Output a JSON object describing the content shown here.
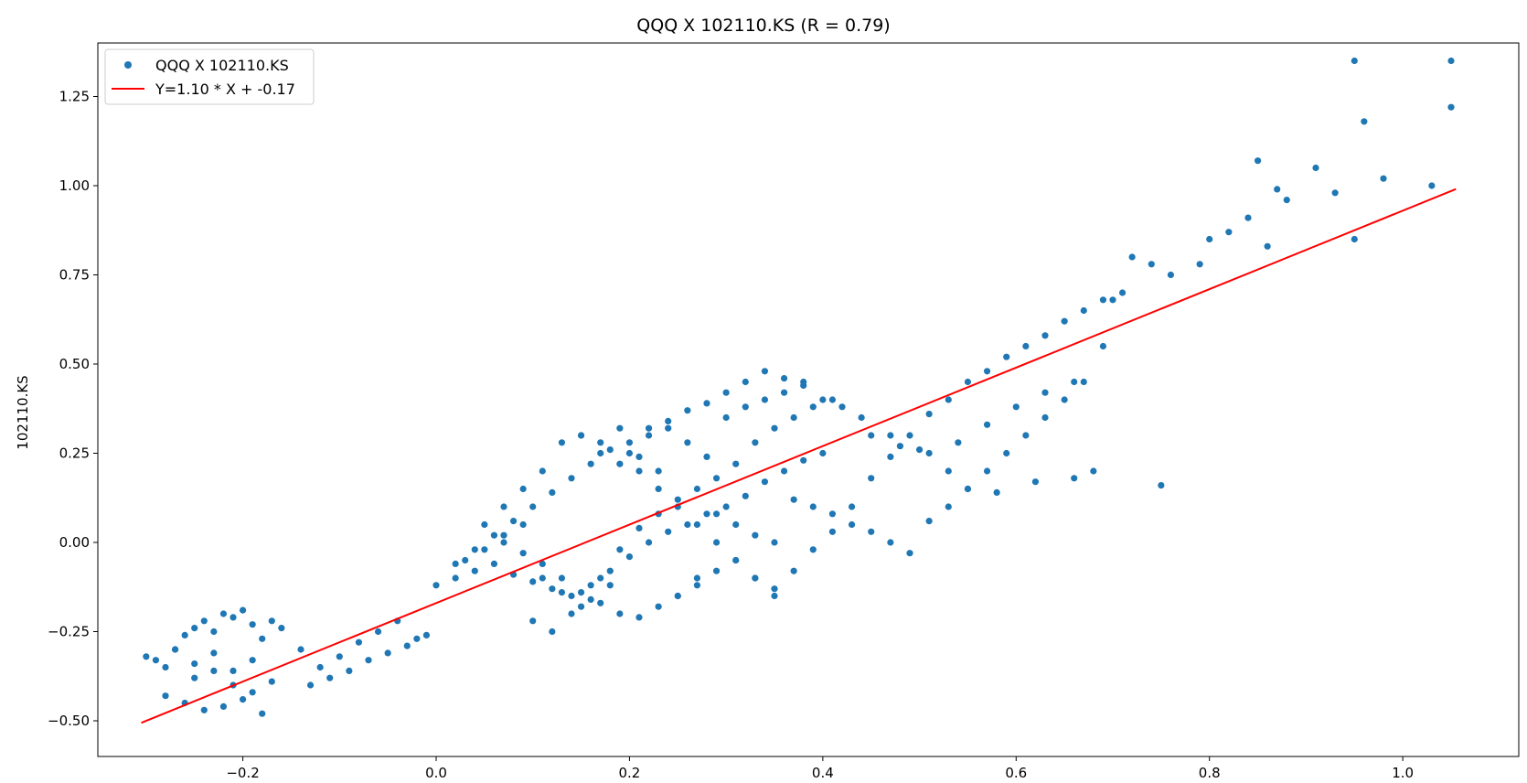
{
  "chart_data": {
    "type": "scatter",
    "title": "QQQ X 102110.KS (R = 0.79)",
    "xlabel": "",
    "ylabel": "102110.KS",
    "xlim": [
      -0.35,
      1.12
    ],
    "ylim": [
      -0.6,
      1.4
    ],
    "xticks": [
      "−0.2",
      "0.0",
      "0.2",
      "0.4",
      "0.6",
      "0.8",
      "1.0"
    ],
    "yticks": [
      "−0.50",
      "−0.25",
      "0.00",
      "0.25",
      "0.50",
      "0.75",
      "1.00",
      "1.25"
    ],
    "xtick_values": [
      -0.2,
      0.0,
      0.2,
      0.4,
      0.6,
      0.8,
      1.0
    ],
    "ytick_values": [
      -0.5,
      -0.25,
      0.0,
      0.25,
      0.5,
      0.75,
      1.0,
      1.25
    ],
    "legend": {
      "position": "upper-left",
      "entries": [
        "QQQ X 102110.KS",
        "Y=1.10 * X + -0.17"
      ]
    },
    "colors": {
      "points": "#1f77b4",
      "fit_line": "#ff0000"
    },
    "series": [
      {
        "name": "QQQ X 102110.KS",
        "type": "scatter",
        "x": [
          -0.3,
          -0.29,
          -0.28,
          -0.27,
          -0.26,
          -0.25,
          -0.24,
          -0.23,
          -0.22,
          -0.21,
          -0.2,
          -0.19,
          -0.18,
          -0.17,
          -0.16,
          -0.28,
          -0.26,
          -0.24,
          -0.22,
          -0.2,
          -0.18,
          -0.25,
          -0.23,
          -0.21,
          -0.19,
          -0.17,
          -0.27,
          -0.25,
          -0.23,
          -0.21,
          -0.19,
          -0.14,
          -0.12,
          -0.1,
          -0.08,
          -0.06,
          -0.04,
          -0.02,
          -0.13,
          -0.11,
          -0.09,
          -0.07,
          -0.05,
          -0.03,
          -0.01,
          0.0,
          0.02,
          0.04,
          0.06,
          0.08,
          0.1,
          0.12,
          0.14,
          0.16,
          0.18,
          0.2,
          0.22,
          0.24,
          0.26,
          0.28,
          0.3,
          0.32,
          0.34,
          0.36,
          0.38,
          0.4,
          0.03,
          0.05,
          0.07,
          0.09,
          0.11,
          0.13,
          0.15,
          0.17,
          0.19,
          0.21,
          0.23,
          0.25,
          0.27,
          0.29,
          0.31,
          0.33,
          0.35,
          0.37,
          0.39,
          0.41,
          0.1,
          0.12,
          0.14,
          0.16,
          0.18,
          0.2,
          0.22,
          0.24,
          0.26,
          0.28,
          0.3,
          0.32,
          0.34,
          0.36,
          0.38,
          0.15,
          0.17,
          0.19,
          0.21,
          0.23,
          0.25,
          0.27,
          0.29,
          0.31,
          0.33,
          0.35,
          0.37,
          0.39,
          0.41,
          0.43,
          0.45,
          0.47,
          0.49,
          0.51,
          0.53,
          0.55,
          0.57,
          0.59,
          0.61,
          0.63,
          0.65,
          0.67,
          0.69,
          0.71,
          0.45,
          0.48,
          0.51,
          0.54,
          0.57,
          0.6,
          0.63,
          0.66,
          0.69,
          0.72,
          0.74,
          0.76,
          0.79,
          0.8,
          0.82,
          0.84,
          0.86,
          0.88,
          0.91,
          0.93,
          0.95,
          0.96,
          0.98,
          1.03,
          1.05,
          1.05,
          0.95,
          0.85,
          0.87,
          0.7,
          0.75,
          0.68,
          0.66,
          0.62,
          0.58,
          0.55,
          0.53,
          0.5,
          0.47,
          0.44,
          0.42,
          0.4,
          0.38,
          0.36,
          0.34,
          0.32,
          0.3,
          0.28,
          0.26,
          0.24,
          0.22,
          0.2,
          0.18,
          0.16,
          0.14,
          0.12,
          0.1,
          0.08,
          0.06,
          0.04,
          0.02,
          0.35,
          0.33,
          0.31,
          0.29,
          0.27,
          0.25,
          0.23,
          0.21,
          0.19,
          0.17,
          0.15,
          0.13,
          0.11,
          0.09,
          0.07,
          0.05,
          0.37,
          0.39,
          0.41,
          0.43,
          0.45,
          0.47,
          0.49,
          0.51,
          0.53,
          0.55,
          0.57,
          0.59,
          0.61,
          0.63,
          0.65,
          0.67,
          0.07,
          0.09,
          0.11,
          0.13,
          0.15,
          0.17,
          0.19,
          0.21,
          0.23,
          0.25,
          0.27,
          0.29,
          0.31,
          0.33,
          0.35
        ],
        "y": [
          -0.32,
          -0.33,
          -0.35,
          -0.3,
          -0.26,
          -0.24,
          -0.22,
          -0.25,
          -0.2,
          -0.21,
          -0.19,
          -0.23,
          -0.27,
          -0.22,
          -0.24,
          -0.43,
          -0.45,
          -0.47,
          -0.46,
          -0.44,
          -0.48,
          -0.38,
          -0.36,
          -0.4,
          -0.42,
          -0.39,
          -0.3,
          -0.34,
          -0.31,
          -0.36,
          -0.33,
          -0.3,
          -0.35,
          -0.32,
          -0.28,
          -0.25,
          -0.22,
          -0.27,
          -0.4,
          -0.38,
          -0.36,
          -0.33,
          -0.31,
          -0.29,
          -0.26,
          -0.12,
          -0.1,
          -0.08,
          -0.06,
          -0.09,
          -0.11,
          -0.13,
          -0.15,
          -0.12,
          -0.08,
          -0.04,
          0.0,
          0.03,
          0.05,
          0.08,
          0.1,
          0.13,
          0.17,
          0.2,
          0.23,
          0.25,
          -0.05,
          -0.02,
          0.02,
          0.05,
          -0.1,
          -0.14,
          -0.18,
          -0.1,
          -0.02,
          0.04,
          0.08,
          0.12,
          0.15,
          0.18,
          0.22,
          0.28,
          0.32,
          0.35,
          0.38,
          0.4,
          -0.22,
          -0.25,
          -0.2,
          -0.16,
          -0.12,
          0.25,
          0.3,
          0.32,
          0.28,
          0.24,
          0.35,
          0.38,
          0.4,
          0.42,
          0.45,
          0.3,
          0.28,
          0.32,
          0.24,
          0.2,
          -0.15,
          -0.12,
          -0.08,
          -0.05,
          -0.1,
          -0.13,
          -0.08,
          -0.02,
          0.03,
          0.1,
          0.18,
          0.24,
          0.3,
          0.36,
          0.4,
          0.45,
          0.48,
          0.52,
          0.55,
          0.58,
          0.62,
          0.65,
          0.68,
          0.7,
          0.3,
          0.27,
          0.25,
          0.28,
          0.33,
          0.38,
          0.42,
          0.45,
          0.55,
          0.8,
          0.78,
          0.75,
          0.78,
          0.85,
          0.87,
          0.91,
          0.83,
          0.96,
          1.05,
          0.98,
          1.35,
          1.18,
          1.02,
          1.0,
          1.35,
          1.22,
          0.85,
          1.07,
          0.99,
          0.68,
          0.16,
          0.2,
          0.18,
          0.17,
          0.14,
          0.15,
          0.2,
          0.26,
          0.3,
          0.35,
          0.38,
          0.4,
          0.44,
          0.46,
          0.48,
          0.45,
          0.42,
          0.39,
          0.37,
          0.34,
          0.32,
          0.28,
          0.26,
          0.22,
          0.18,
          0.14,
          0.1,
          0.06,
          0.02,
          -0.02,
          -0.06,
          0.0,
          0.02,
          0.05,
          0.08,
          -0.1,
          -0.15,
          -0.18,
          -0.21,
          -0.2,
          -0.17,
          -0.14,
          -0.1,
          -0.06,
          -0.03,
          0.0,
          0.05,
          0.12,
          0.1,
          0.08,
          0.05,
          0.03,
          0.0,
          -0.03,
          0.06,
          0.1,
          0.15,
          0.2,
          0.25,
          0.3,
          0.35,
          0.4,
          0.45,
          0.1,
          0.15,
          0.2,
          0.28,
          0.3,
          0.25,
          0.22,
          0.2,
          0.15,
          0.1,
          0.05,
          0.0,
          -0.05,
          -0.1,
          -0.15
        ]
      },
      {
        "name": "Y=1.10 * X + -0.17",
        "type": "line",
        "x": [
          -0.305,
          1.055
        ],
        "y": [
          -0.5055,
          0.9905
        ]
      }
    ]
  }
}
